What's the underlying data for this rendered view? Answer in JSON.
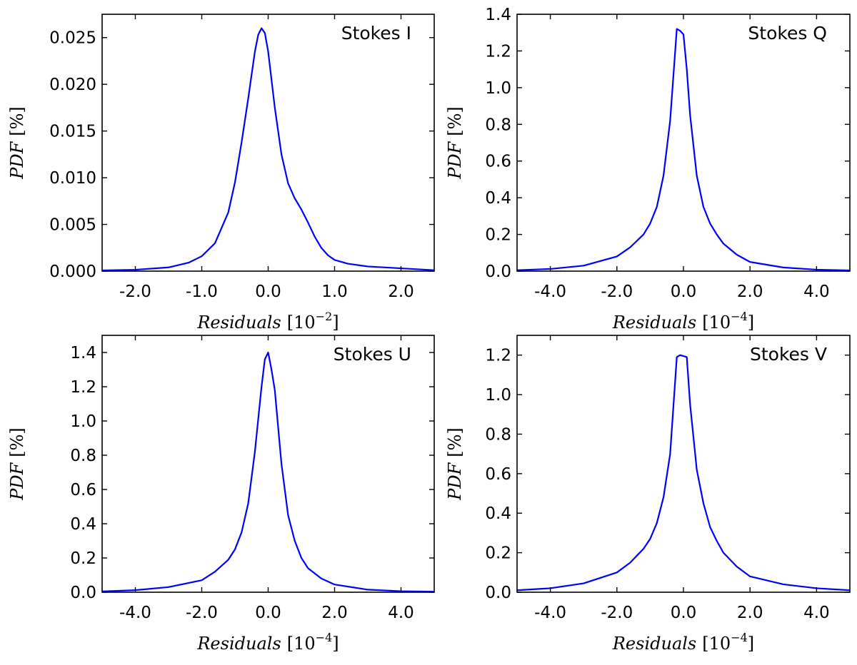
{
  "chart_data": [
    {
      "id": "stokes-i",
      "type": "line",
      "title": "Stokes I",
      "xlabel_base": "Residuals",
      "xlabel_unit_prefix": "[10",
      "xlabel_exponent": "−2",
      "xlabel_unit_suffix": "]",
      "ylabel_base": "PDF",
      "ylabel_unit": "[%]",
      "xlim": [
        -2.5,
        2.5
      ],
      "ylim": [
        0,
        0.0275
      ],
      "xticks": [
        -2.0,
        -1.0,
        0.0,
        1.0,
        2.0
      ],
      "xtick_labels": [
        "-2.0",
        "-1.0",
        "0.0",
        "1.0",
        "2.0"
      ],
      "yticks": [
        0.0,
        0.005,
        0.01,
        0.015,
        0.02,
        0.025
      ],
      "ytick_labels": [
        "0.000",
        "0.005",
        "0.010",
        "0.015",
        "0.020",
        "0.025"
      ],
      "color": "#0000ff",
      "x": [
        -2.5,
        -2.0,
        -1.5,
        -1.2,
        -1.0,
        -0.8,
        -0.6,
        -0.5,
        -0.4,
        -0.3,
        -0.2,
        -0.15,
        -0.1,
        -0.05,
        0.0,
        0.05,
        0.1,
        0.2,
        0.3,
        0.4,
        0.5,
        0.6,
        0.7,
        0.8,
        0.9,
        1.0,
        1.2,
        1.5,
        2.0,
        2.5
      ],
      "y": [
        8e-05,
        0.00015,
        0.0004,
        0.0009,
        0.0016,
        0.003,
        0.0063,
        0.0095,
        0.0138,
        0.0185,
        0.0235,
        0.0253,
        0.026,
        0.0255,
        0.0235,
        0.0205,
        0.0175,
        0.0125,
        0.0094,
        0.0078,
        0.0066,
        0.0052,
        0.0037,
        0.0025,
        0.0017,
        0.0012,
        0.0008,
        0.0005,
        0.0003,
        0.0001
      ]
    },
    {
      "id": "stokes-q",
      "type": "line",
      "title": "Stokes Q",
      "xlabel_base": "Residuals",
      "xlabel_unit_prefix": "[10",
      "xlabel_exponent": "−4",
      "xlabel_unit_suffix": "]",
      "ylabel_base": "PDF",
      "ylabel_unit": "[%]",
      "xlim": [
        -5,
        5
      ],
      "ylim": [
        0,
        1.4
      ],
      "xticks": [
        -4,
        -2,
        0,
        2,
        4
      ],
      "xtick_labels": [
        "-4.0",
        "-2.0",
        "0.0",
        "2.0",
        "4.0"
      ],
      "yticks": [
        0.0,
        0.2,
        0.4,
        0.6,
        0.8,
        1.0,
        1.2,
        1.4
      ],
      "ytick_labels": [
        "0.0",
        "0.2",
        "0.4",
        "0.6",
        "0.8",
        "1.0",
        "1.2",
        "1.4"
      ],
      "color": "#0000ff",
      "x": [
        -5.0,
        -4.0,
        -3.0,
        -2.0,
        -1.6,
        -1.2,
        -1.0,
        -0.8,
        -0.6,
        -0.4,
        -0.2,
        -0.1,
        0.0,
        0.1,
        0.2,
        0.4,
        0.6,
        0.8,
        1.0,
        1.2,
        1.6,
        2.0,
        3.0,
        4.0,
        5.0
      ],
      "y": [
        0.005,
        0.012,
        0.03,
        0.08,
        0.13,
        0.2,
        0.26,
        0.35,
        0.52,
        0.82,
        1.32,
        1.31,
        1.29,
        1.1,
        0.85,
        0.52,
        0.35,
        0.26,
        0.2,
        0.15,
        0.09,
        0.05,
        0.02,
        0.008,
        0.004
      ]
    },
    {
      "id": "stokes-u",
      "type": "line",
      "title": "Stokes U",
      "xlabel_base": "Residuals",
      "xlabel_unit_prefix": "[10",
      "xlabel_exponent": "−4",
      "xlabel_unit_suffix": "]",
      "ylabel_base": "PDF",
      "ylabel_unit": "[%]",
      "xlim": [
        -5,
        5
      ],
      "ylim": [
        0,
        1.5
      ],
      "xticks": [
        -4,
        -2,
        0,
        2,
        4
      ],
      "xtick_labels": [
        "-4.0",
        "-2.0",
        "0.0",
        "2.0",
        "4.0"
      ],
      "yticks": [
        0.0,
        0.2,
        0.4,
        0.6,
        0.8,
        1.0,
        1.2,
        1.4
      ],
      "ytick_labels": [
        "0.0",
        "0.2",
        "0.4",
        "0.6",
        "0.8",
        "1.0",
        "1.2",
        "1.4"
      ],
      "color": "#0000ff",
      "x": [
        -5.0,
        -4.0,
        -3.0,
        -2.0,
        -1.6,
        -1.2,
        -1.0,
        -0.8,
        -0.6,
        -0.4,
        -0.2,
        -0.1,
        0.0,
        0.1,
        0.2,
        0.4,
        0.6,
        0.8,
        1.0,
        1.2,
        1.6,
        2.0,
        3.0,
        4.0,
        5.0
      ],
      "y": [
        0.005,
        0.012,
        0.03,
        0.07,
        0.12,
        0.19,
        0.25,
        0.35,
        0.52,
        0.82,
        1.2,
        1.36,
        1.4,
        1.3,
        1.18,
        0.75,
        0.45,
        0.3,
        0.2,
        0.14,
        0.08,
        0.045,
        0.015,
        0.006,
        0.003
      ]
    },
    {
      "id": "stokes-v",
      "type": "line",
      "title": "Stokes V",
      "xlabel_base": "Residuals",
      "xlabel_unit_prefix": "[10",
      "xlabel_exponent": "−4",
      "xlabel_unit_suffix": "]",
      "ylabel_base": "PDF",
      "ylabel_unit": "[%]",
      "xlim": [
        -5,
        5
      ],
      "ylim": [
        0,
        1.3
      ],
      "xticks": [
        -4,
        -2,
        0,
        2,
        4
      ],
      "xtick_labels": [
        "-4.0",
        "-2.0",
        "0.0",
        "2.0",
        "4.0"
      ],
      "yticks": [
        0.0,
        0.2,
        0.4,
        0.6,
        0.8,
        1.0,
        1.2
      ],
      "ytick_labels": [
        "0.0",
        "0.2",
        "0.4",
        "0.6",
        "0.8",
        "1.0",
        "1.2"
      ],
      "color": "#0000ff",
      "x": [
        -5.0,
        -4.0,
        -3.0,
        -2.0,
        -1.6,
        -1.2,
        -1.0,
        -0.8,
        -0.6,
        -0.4,
        -0.2,
        -0.1,
        0.0,
        0.1,
        0.2,
        0.4,
        0.6,
        0.8,
        1.0,
        1.2,
        1.6,
        2.0,
        3.0,
        4.0,
        5.0
      ],
      "y": [
        0.01,
        0.02,
        0.045,
        0.1,
        0.15,
        0.22,
        0.27,
        0.35,
        0.48,
        0.7,
        1.19,
        1.2,
        1.195,
        1.19,
        0.95,
        0.62,
        0.45,
        0.33,
        0.26,
        0.2,
        0.13,
        0.08,
        0.04,
        0.02,
        0.01
      ]
    }
  ]
}
